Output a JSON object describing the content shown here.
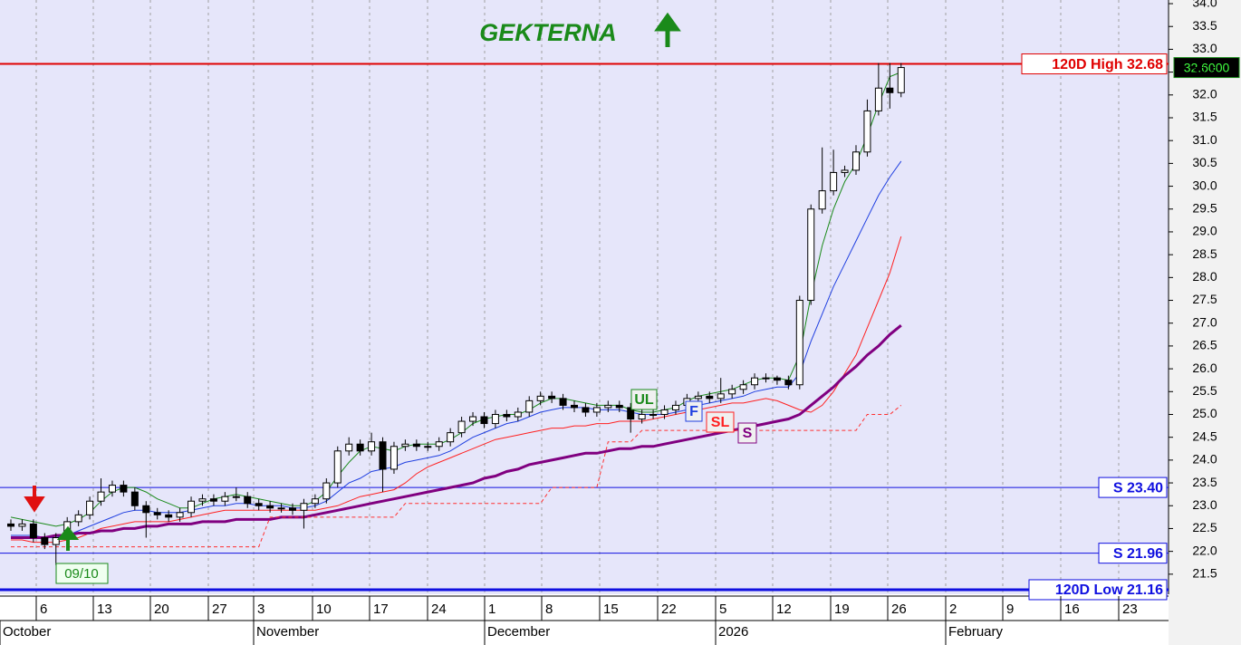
{
  "chart_data": {
    "type": "candlestick",
    "title": "GEKTERNA",
    "open": [
      22.6,
      22.55,
      22.6,
      22.3,
      22.15,
      22.3,
      22.65,
      22.8,
      23.1,
      23.3,
      23.45,
      23.3,
      23.0,
      22.85,
      22.8,
      22.75,
      22.85,
      23.1,
      23.15,
      23.1,
      23.2,
      23.2,
      23.05,
      23.0,
      22.95,
      22.95,
      22.9,
      23.05,
      23.15,
      23.5,
      24.2,
      24.35,
      24.2,
      24.4,
      23.8,
      24.3,
      24.35,
      24.3,
      24.3,
      24.4,
      24.6,
      24.85,
      24.95,
      24.8,
      25.0,
      24.95,
      25.05,
      25.3,
      25.4,
      25.35,
      25.2,
      25.15,
      25.05,
      25.15,
      25.2,
      25.15,
      24.9,
      25.0,
      25.0,
      25.1,
      25.2,
      25.35,
      25.4,
      25.35,
      25.45,
      25.55,
      25.65,
      25.8,
      25.8,
      25.75,
      25.65,
      27.5,
      29.5,
      29.9,
      30.3,
      30.35,
      30.75,
      31.65,
      32.15,
      32.05
    ],
    "high": [
      22.7,
      22.7,
      22.7,
      22.4,
      22.4,
      22.75,
      22.9,
      23.2,
      23.6,
      23.55,
      23.55,
      23.4,
      23.1,
      22.95,
      22.9,
      22.95,
      23.2,
      23.25,
      23.25,
      23.3,
      23.4,
      23.3,
      23.15,
      23.1,
      23.05,
      23.05,
      23.15,
      23.25,
      23.6,
      24.3,
      24.5,
      24.45,
      24.6,
      24.5,
      24.4,
      24.45,
      24.45,
      24.4,
      24.5,
      24.7,
      24.95,
      25.05,
      25.05,
      25.1,
      25.1,
      25.15,
      25.4,
      25.5,
      25.5,
      25.45,
      25.3,
      25.25,
      25.25,
      25.3,
      25.3,
      25.25,
      25.1,
      25.1,
      25.2,
      25.3,
      25.45,
      25.5,
      25.5,
      25.8,
      25.65,
      25.75,
      25.9,
      25.9,
      25.85,
      25.85,
      27.6,
      29.6,
      30.85,
      30.8,
      30.45,
      30.9,
      31.9,
      32.7,
      32.7,
      32.7
    ],
    "low": [
      22.45,
      22.45,
      22.2,
      22.05,
      21.7,
      22.2,
      22.55,
      22.7,
      23.0,
      23.2,
      23.2,
      22.9,
      22.3,
      22.7,
      22.65,
      22.65,
      22.75,
      23.0,
      23.0,
      23.0,
      23.1,
      22.95,
      22.9,
      22.85,
      22.85,
      22.8,
      22.5,
      22.95,
      23.05,
      23.4,
      24.1,
      24.1,
      24.1,
      23.3,
      23.7,
      24.2,
      24.2,
      24.2,
      24.2,
      24.3,
      24.5,
      24.75,
      24.7,
      24.7,
      24.85,
      24.85,
      24.95,
      25.2,
      25.25,
      25.1,
      25.05,
      24.95,
      24.95,
      25.05,
      25.05,
      24.6,
      24.8,
      24.9,
      24.9,
      25.0,
      25.1,
      25.25,
      25.25,
      25.25,
      25.35,
      25.45,
      25.55,
      25.7,
      25.65,
      25.55,
      25.55,
      27.4,
      29.4,
      29.8,
      30.2,
      30.25,
      30.65,
      31.55,
      31.7,
      31.95
    ],
    "close": [
      22.55,
      22.6,
      22.3,
      22.15,
      22.3,
      22.65,
      22.8,
      23.1,
      23.3,
      23.45,
      23.3,
      23.0,
      22.85,
      22.8,
      22.75,
      22.85,
      23.1,
      23.15,
      23.1,
      23.2,
      23.2,
      23.05,
      23.0,
      22.95,
      22.95,
      22.9,
      23.05,
      23.15,
      23.5,
      24.2,
      24.35,
      24.2,
      24.4,
      23.8,
      24.3,
      24.35,
      24.3,
      24.3,
      24.4,
      24.6,
      24.85,
      24.95,
      24.8,
      25.0,
      24.95,
      25.05,
      25.3,
      25.4,
      25.35,
      25.2,
      25.15,
      25.05,
      25.15,
      25.2,
      25.15,
      24.9,
      25.0,
      25.0,
      25.1,
      25.2,
      25.35,
      25.4,
      25.35,
      25.45,
      25.55,
      25.65,
      25.8,
      25.8,
      25.75,
      25.65,
      27.5,
      29.5,
      29.9,
      30.3,
      30.35,
      30.75,
      31.65,
      32.15,
      32.05,
      32.6
    ],
    "series": [
      {
        "name": "UL",
        "color": "#1a8a1a",
        "width": 1,
        "values": [
          22.75,
          22.7,
          22.65,
          22.6,
          22.55,
          22.6,
          22.7,
          22.85,
          23.1,
          23.3,
          23.4,
          23.4,
          23.3,
          23.15,
          23.05,
          22.95,
          22.95,
          23.05,
          23.15,
          23.2,
          23.25,
          23.2,
          23.15,
          23.1,
          23.05,
          23.0,
          23.0,
          23.1,
          23.3,
          23.65,
          23.95,
          24.2,
          24.3,
          24.25,
          24.2,
          24.3,
          24.35,
          24.35,
          24.35,
          24.45,
          24.6,
          24.8,
          24.9,
          24.95,
          25.0,
          25.0,
          25.1,
          25.25,
          25.35,
          25.35,
          25.3,
          25.25,
          25.2,
          25.2,
          25.2,
          25.1,
          25.05,
          25.05,
          25.1,
          25.15,
          25.3,
          25.4,
          25.45,
          25.5,
          25.55,
          25.65,
          25.75,
          25.8,
          25.8,
          25.75,
          26.3,
          27.6,
          28.7,
          29.5,
          30.1,
          30.5,
          31.1,
          31.8,
          32.4,
          32.5
        ]
      },
      {
        "name": "F",
        "color": "#1f3fe0",
        "width": 1,
        "values": [
          22.35,
          22.35,
          22.35,
          22.3,
          22.3,
          22.35,
          22.45,
          22.55,
          22.65,
          22.75,
          22.85,
          22.9,
          22.9,
          22.85,
          22.85,
          22.85,
          22.9,
          22.95,
          23.0,
          23.0,
          23.05,
          23.05,
          23.0,
          23.0,
          23.0,
          22.95,
          22.95,
          23.0,
          23.1,
          23.3,
          23.5,
          23.6,
          23.75,
          23.8,
          23.85,
          23.95,
          24.0,
          24.05,
          24.1,
          24.2,
          24.35,
          24.5,
          24.6,
          24.7,
          24.8,
          24.85,
          24.95,
          25.05,
          25.1,
          25.15,
          25.15,
          25.15,
          25.1,
          25.1,
          25.1,
          25.05,
          25.0,
          25.0,
          25.0,
          25.05,
          25.1,
          25.2,
          25.25,
          25.3,
          25.35,
          25.4,
          25.5,
          25.55,
          25.6,
          25.6,
          25.9,
          26.6,
          27.2,
          27.8,
          28.3,
          28.8,
          29.3,
          29.8,
          30.2,
          30.55
        ]
      },
      {
        "name": "SL",
        "color": "#ff2020",
        "width": 1,
        "values": [
          22.25,
          22.25,
          22.2,
          22.2,
          22.2,
          22.25,
          22.3,
          22.4,
          22.5,
          22.55,
          22.6,
          22.65,
          22.65,
          22.65,
          22.65,
          22.7,
          22.75,
          22.8,
          22.85,
          22.9,
          22.9,
          22.9,
          22.9,
          22.9,
          22.9,
          22.9,
          22.9,
          22.9,
          22.95,
          23.0,
          23.1,
          23.2,
          23.25,
          23.3,
          23.35,
          23.5,
          23.7,
          23.85,
          23.95,
          24.05,
          24.15,
          24.25,
          24.35,
          24.45,
          24.5,
          24.55,
          24.6,
          24.65,
          24.7,
          24.7,
          24.75,
          24.75,
          24.8,
          24.8,
          24.85,
          24.85,
          24.85,
          24.9,
          24.95,
          25.0,
          25.05,
          25.1,
          25.15,
          25.2,
          25.25,
          25.25,
          25.3,
          25.35,
          25.3,
          25.2,
          25.1,
          25.05,
          25.2,
          25.5,
          25.9,
          26.3,
          26.9,
          27.5,
          28.1,
          28.9
        ]
      },
      {
        "name": "S",
        "color": "#800080",
        "width": 3,
        "values": [
          22.3,
          22.3,
          22.3,
          22.3,
          22.35,
          22.35,
          22.4,
          22.4,
          22.45,
          22.45,
          22.5,
          22.5,
          22.55,
          22.55,
          22.6,
          22.6,
          22.6,
          22.65,
          22.65,
          22.65,
          22.7,
          22.7,
          22.7,
          22.7,
          22.75,
          22.75,
          22.75,
          22.8,
          22.85,
          22.9,
          22.95,
          23.0,
          23.05,
          23.1,
          23.15,
          23.2,
          23.25,
          23.3,
          23.35,
          23.4,
          23.45,
          23.5,
          23.6,
          23.65,
          23.75,
          23.8,
          23.9,
          23.95,
          24.0,
          24.05,
          24.1,
          24.15,
          24.15,
          24.2,
          24.25,
          24.25,
          24.3,
          24.3,
          24.35,
          24.4,
          24.45,
          24.5,
          24.55,
          24.6,
          24.65,
          24.7,
          24.75,
          24.8,
          24.85,
          24.9,
          25.0,
          25.2,
          25.4,
          25.6,
          25.85,
          26.05,
          26.3,
          26.5,
          26.75,
          26.95
        ]
      },
      {
        "color": "#ff3030",
        "width": 1,
        "dashed": true,
        "values": [
          22.1,
          22.1,
          22.1,
          22.1,
          22.1,
          22.1,
          22.1,
          22.1,
          22.1,
          22.1,
          22.1,
          22.1,
          22.1,
          22.1,
          22.1,
          22.1,
          22.1,
          22.1,
          22.1,
          22.1,
          22.1,
          22.1,
          22.1,
          22.75,
          22.75,
          22.75,
          22.75,
          22.75,
          22.75,
          22.75,
          22.75,
          22.75,
          22.75,
          22.75,
          22.75,
          23.05,
          23.05,
          23.05,
          23.05,
          23.05,
          23.05,
          23.05,
          23.05,
          23.05,
          23.05,
          23.05,
          23.05,
          23.05,
          23.4,
          23.4,
          23.4,
          23.4,
          23.4,
          24.4,
          24.4,
          24.4,
          24.65,
          24.65,
          24.65,
          24.65,
          24.65,
          24.65,
          24.65,
          24.65,
          24.65,
          24.65,
          24.65,
          24.65,
          24.65,
          24.65,
          24.65,
          24.65,
          24.65,
          24.65,
          24.65,
          24.65,
          25.0,
          25.0,
          25.0,
          25.2
        ]
      }
    ],
    "levels": [
      {
        "value": 32.68,
        "label": "120D High 32.68",
        "color": "#e00000",
        "width": 2
      },
      {
        "value": 23.4,
        "label": "S 23.40",
        "color": "#1010e0",
        "width": 1
      },
      {
        "value": 21.96,
        "label": "S 21.96",
        "color": "#1010e0",
        "width": 1
      },
      {
        "value": 21.16,
        "label": "120D Low 21.16",
        "color": "#1010e0",
        "width": 3
      }
    ],
    "last_price": {
      "value": 32.6,
      "label": "32.6000"
    },
    "date_annotation": "09/10",
    "xtick_labels": [
      "6",
      "13",
      "20",
      "27",
      "3",
      "10",
      "17",
      "24",
      "1",
      "8",
      "15",
      "22",
      "5",
      "12",
      "19",
      "26",
      "2",
      "9",
      "16",
      "23"
    ],
    "month_labels": [
      "October",
      "November",
      "December",
      "2026",
      "February"
    ],
    "ylim": [
      21.06,
      34.08
    ],
    "yticks": [
      21.5,
      {
        "value": 22,
        "label": "22.0"
      },
      22.5,
      {
        "value": 23,
        "label": "23.0"
      },
      23.5,
      {
        "value": 24,
        "label": "24.0"
      },
      24.5,
      {
        "value": 25,
        "label": "25.0"
      },
      25.5,
      {
        "value": 26,
        "label": "26.0"
      },
      26.5,
      {
        "value": 27,
        "label": "27.0"
      },
      27.5,
      {
        "value": 28,
        "label": "28.0"
      },
      28.5,
      {
        "value": 29,
        "label": "29.0"
      },
      29.5,
      {
        "value": 30,
        "label": "30.0"
      },
      30.5,
      {
        "value": 31,
        "label": "31.0"
      },
      31.5,
      {
        "value": 32,
        "label": "32.0"
      },
      32.5,
      {
        "value": 33,
        "label": "33.0"
      },
      33.5,
      {
        "value": 34,
        "label": "34.0"
      }
    ],
    "grid": true
  }
}
